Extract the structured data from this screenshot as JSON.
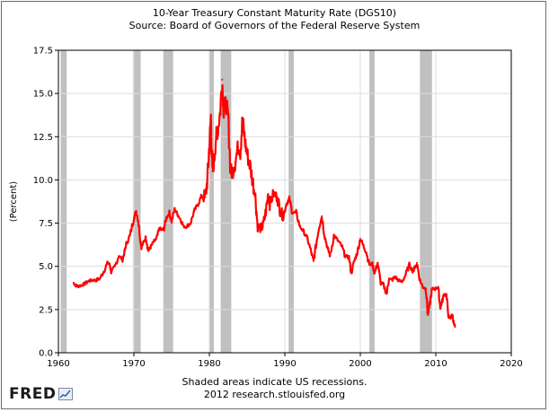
{
  "header": {
    "title": "10-Year Treasury Constant Maturity Rate (DGS10)",
    "subtitle": "Source: Board of Governors of the Federal Reserve System"
  },
  "footer": {
    "note": "Shaded areas indicate US recessions.",
    "credit": "2012 research.stlouisfed.org",
    "logo_text": "FRED"
  },
  "colors": {
    "line": "#ff0000",
    "recession": "#c0c0c0",
    "grid": "#dcdcdc",
    "axis": "#000000"
  },
  "chart_data": {
    "type": "line",
    "title": "10-Year Treasury Constant Maturity Rate (DGS10)",
    "ylabel": "(Percent)",
    "xlim": [
      1960,
      2020
    ],
    "ylim": [
      0.0,
      17.5
    ],
    "xticks": [
      "1960",
      "1970",
      "1980",
      "1990",
      "2000",
      "2010",
      "2020"
    ],
    "yticks": [
      "0.0",
      "2.5",
      "5.0",
      "7.5",
      "10.0",
      "12.5",
      "15.0",
      "17.5"
    ],
    "grid": true,
    "recessions": [
      [
        1960.3,
        1961.1
      ],
      [
        1969.9,
        1970.9
      ],
      [
        1973.9,
        1975.2
      ],
      [
        1980.0,
        1980.6
      ],
      [
        1981.5,
        1982.9
      ],
      [
        1990.5,
        1991.2
      ],
      [
        2001.2,
        2001.9
      ],
      [
        2007.9,
        2009.5
      ]
    ],
    "series": [
      {
        "x": [
          1962.0,
          1962.3,
          1962.6,
          1963.0,
          1963.5,
          1964.0,
          1964.5,
          1965.0,
          1965.5,
          1966.0,
          1966.5,
          1966.8,
          1967.0,
          1967.5,
          1968.0,
          1968.5,
          1968.8,
          1969.0,
          1969.5,
          1970.0,
          1970.3,
          1970.6,
          1970.9,
          1971.0,
          1971.3,
          1971.6,
          1971.9,
          1972.2,
          1972.6,
          1973.0,
          1973.4,
          1973.7,
          1974.0,
          1974.3,
          1974.7,
          1975.0,
          1975.4,
          1975.8,
          1976.2,
          1976.6,
          1977.0,
          1977.5,
          1978.0,
          1978.5,
          1979.0,
          1979.5,
          1979.8,
          1980.0,
          1980.2,
          1980.4,
          1980.6,
          1980.9,
          1981.1,
          1981.4,
          1981.7,
          1981.9,
          1982.2,
          1982.5,
          1982.8,
          1983.0,
          1983.4,
          1983.8,
          1984.1,
          1984.4,
          1984.7,
          1985.0,
          1985.4,
          1985.8,
          1986.1,
          1986.4,
          1986.8,
          1987.1,
          1987.5,
          1987.8,
          1988.0,
          1988.5,
          1989.0,
          1989.4,
          1989.8,
          1990.2,
          1990.6,
          1991.0,
          1991.5,
          1992.0,
          1992.5,
          1993.0,
          1993.5,
          1993.8,
          1994.2,
          1994.5,
          1994.9,
          1995.3,
          1995.7,
          1996.0,
          1996.5,
          1997.0,
          1997.5,
          1998.0,
          1998.5,
          1998.8,
          1999.2,
          1999.6,
          2000.0,
          2000.4,
          2000.8,
          2001.2,
          2001.6,
          2001.9,
          2002.3,
          2002.7,
          2003.0,
          2003.5,
          2003.8,
          2004.2,
          2004.6,
          2005.0,
          2005.5,
          2006.0,
          2006.5,
          2007.0,
          2007.5,
          2007.9,
          2008.3,
          2008.7,
          2008.95,
          2009.2,
          2009.5,
          2009.9,
          2010.3,
          2010.6,
          2010.8,
          2011.1,
          2011.4,
          2011.7,
          2011.9,
          2012.2,
          2012.4,
          2012.55
        ],
        "values": [
          4.05,
          3.9,
          3.85,
          3.9,
          4.0,
          4.15,
          4.2,
          4.2,
          4.3,
          4.7,
          5.2,
          5.1,
          4.65,
          5.0,
          5.6,
          5.4,
          5.9,
          6.3,
          6.8,
          7.8,
          8.2,
          7.6,
          6.4,
          6.1,
          6.4,
          6.7,
          5.9,
          6.1,
          6.4,
          6.6,
          7.2,
          7.1,
          7.2,
          7.8,
          8.1,
          7.6,
          8.3,
          8.0,
          7.7,
          7.3,
          7.3,
          7.5,
          8.2,
          8.6,
          9.1,
          9.0,
          10.4,
          12.0,
          13.6,
          10.5,
          11.0,
          12.6,
          12.8,
          13.8,
          15.8,
          14.0,
          14.5,
          13.6,
          10.6,
          10.4,
          11.0,
          11.9,
          11.7,
          13.5,
          12.3,
          11.5,
          10.8,
          9.8,
          9.0,
          7.3,
          7.2,
          7.3,
          8.2,
          9.2,
          8.6,
          9.2,
          9.0,
          8.2,
          7.9,
          8.6,
          8.9,
          8.1,
          8.1,
          7.3,
          7.0,
          6.6,
          5.8,
          5.3,
          6.4,
          7.2,
          7.9,
          6.7,
          6.0,
          5.6,
          6.8,
          6.5,
          6.2,
          5.6,
          5.5,
          4.6,
          5.3,
          5.8,
          6.6,
          6.2,
          5.8,
          5.1,
          5.1,
          4.6,
          5.2,
          4.0,
          4.0,
          3.4,
          4.3,
          4.2,
          4.4,
          4.2,
          4.1,
          4.5,
          5.1,
          4.7,
          5.2,
          4.2,
          3.8,
          3.7,
          2.2,
          2.8,
          3.7,
          3.7,
          3.8,
          2.6,
          2.9,
          3.4,
          3.3,
          2.1,
          2.0,
          2.2,
          1.65,
          1.5
        ]
      }
    ]
  }
}
